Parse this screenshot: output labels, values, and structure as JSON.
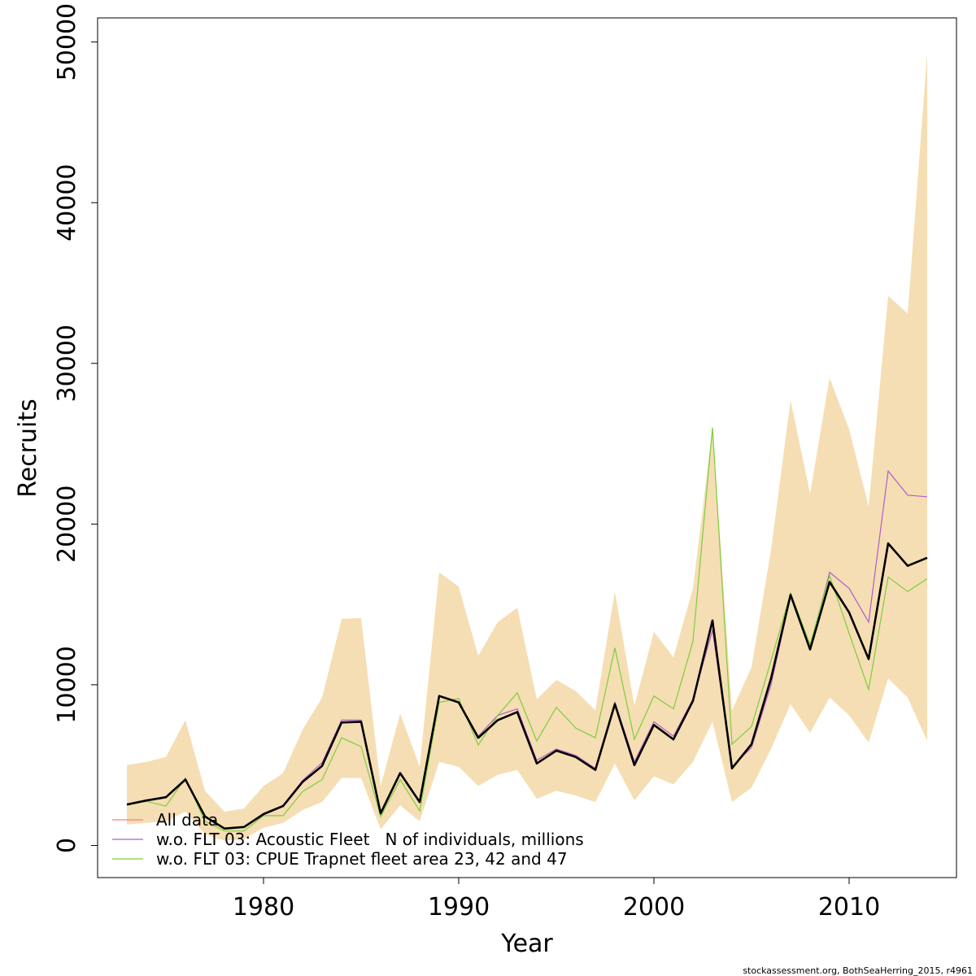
{
  "chart_data": {
    "type": "line",
    "xlabel": "Year",
    "ylabel": "Recruits",
    "xlim": [
      1971.5,
      2015.5
    ],
    "ylim": [
      -2000,
      51500
    ],
    "xticks": [
      1980,
      1990,
      2000,
      2010
    ],
    "xtick_labels": [
      "1980",
      "1990",
      "2000",
      "2010"
    ],
    "yticks": [
      0,
      10000,
      20000,
      30000,
      40000,
      50000
    ],
    "ytick_labels": [
      "0",
      "10000",
      "20000",
      "30000",
      "40000",
      "50000"
    ],
    "grid": false,
    "legend_position": "bottom-left",
    "x": [
      1973,
      1974,
      1975,
      1976,
      1977,
      1978,
      1979,
      1980,
      1981,
      1982,
      1983,
      1984,
      1985,
      1986,
      1987,
      1988,
      1989,
      1990,
      1991,
      1992,
      1993,
      1994,
      1995,
      1996,
      1997,
      1998,
      1999,
      2000,
      2001,
      2002,
      2003,
      2004,
      2005,
      2006,
      2007,
      2008,
      2009,
      2010,
      2011,
      2012,
      2013,
      2014
    ],
    "band": {
      "color": "#f5deb3",
      "upper": [
        5000,
        5200,
        5500,
        7800,
        3400,
        2100,
        2300,
        3700,
        4500,
        7200,
        9200,
        14100,
        14150,
        3700,
        8200,
        4900,
        17000,
        16100,
        11800,
        13900,
        14800,
        9100,
        10300,
        9600,
        8400,
        15800,
        8700,
        13300,
        11700,
        16000,
        26000,
        8400,
        11100,
        18400,
        27700,
        21900,
        29100,
        25900,
        21100,
        34200,
        33100,
        49300
      ],
      "lower": [
        1300,
        1400,
        1500,
        2100,
        700,
        300,
        400,
        1100,
        1400,
        2200,
        2700,
        4200,
        4200,
        1000,
        2500,
        1500,
        5200,
        4900,
        3700,
        4400,
        4700,
        2900,
        3400,
        3100,
        2700,
        5100,
        2800,
        4300,
        3800,
        5200,
        7700,
        2700,
        3600,
        6000,
        8800,
        7000,
        9200,
        8100,
        6400,
        10400,
        9200,
        6500
      ]
    },
    "series": [
      {
        "name": "All data",
        "color": "#f08080",
        "values": [
          2550,
          2800,
          3000,
          4100,
          1800,
          1050,
          1150,
          1950,
          2450,
          3950,
          4950,
          7650,
          7700,
          2000,
          4500,
          2700,
          9300,
          8900,
          6700,
          7800,
          8300,
          5100,
          5900,
          5500,
          4700,
          8800,
          5000,
          7500,
          6600,
          9000,
          14000,
          4800,
          6300,
          10400,
          15600,
          12200,
          16400,
          14500,
          11600,
          18800,
          17400,
          17900
        ]
      },
      {
        "name": "w.o. FLT 03: Acoustic Fleet   N of individuals, millions",
        "color": "#b05cc8",
        "values": [
          2550,
          2800,
          3050,
          4150,
          1800,
          1050,
          1150,
          2000,
          2500,
          4050,
          5150,
          7800,
          7800,
          2050,
          4550,
          2750,
          9300,
          8950,
          6800,
          8100,
          8500,
          5300,
          6000,
          5600,
          4800,
          8900,
          5200,
          7700,
          6800,
          9100,
          13400,
          4900,
          6100,
          10000,
          15500,
          12300,
          17000,
          16000,
          13900,
          23300,
          21800,
          21700
        ]
      },
      {
        "name": "w.o. FLT 03: CPUE Trapnet fleet area 23, 42 and 47",
        "color": "#7ccd3c",
        "values": [
          2500,
          2750,
          2450,
          4200,
          1500,
          900,
          900,
          1850,
          1850,
          3350,
          4100,
          6700,
          6150,
          1800,
          4100,
          2150,
          8900,
          9150,
          6250,
          8100,
          9500,
          6500,
          8600,
          7300,
          6700,
          12300,
          6600,
          9300,
          8500,
          12700,
          26000,
          6300,
          7400,
          11500,
          15700,
          12500,
          16800,
          13200,
          9700,
          16700,
          15800,
          16600
        ]
      }
    ],
    "main_line": {
      "color": "#000000",
      "values": [
        2550,
        2800,
        3000,
        4100,
        1800,
        1050,
        1150,
        1950,
        2450,
        3950,
        4950,
        7650,
        7700,
        2000,
        4500,
        2700,
        9300,
        8900,
        6700,
        7800,
        8300,
        5100,
        5900,
        5500,
        4700,
        8800,
        5000,
        7500,
        6600,
        9000,
        14000,
        4800,
        6300,
        10400,
        15600,
        12200,
        16400,
        14500,
        11600,
        18800,
        17400,
        17900
      ]
    },
    "credit": "stockassessment.org, BothSeaHerring_2015, r4961"
  }
}
